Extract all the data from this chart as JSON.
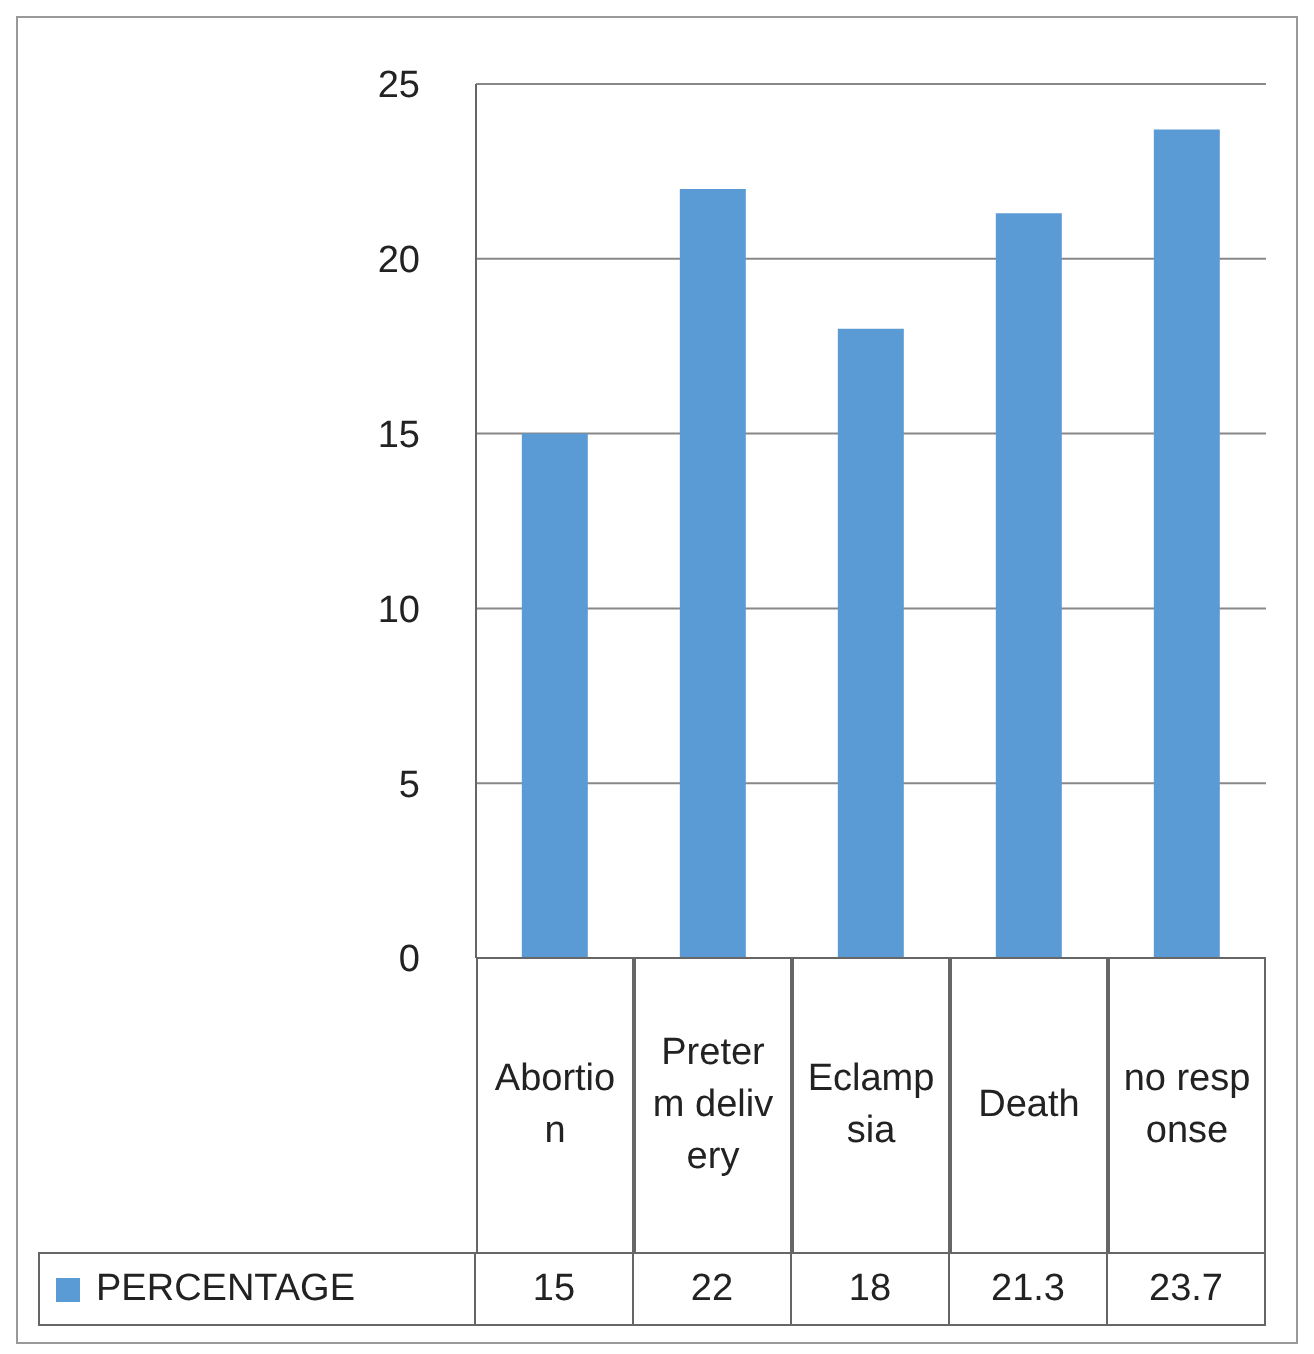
{
  "chart_data": {
    "type": "bar",
    "categories": [
      "Abortion",
      "Preterm delivery",
      "Eclampsia",
      "Death",
      "no response"
    ],
    "series": [
      {
        "name": "PERCENTAGE",
        "color": "#5b9bd5",
        "values": [
          15,
          22,
          18,
          21.3,
          23.7
        ]
      }
    ],
    "ylim": [
      0,
      25
    ],
    "yticks": [
      0,
      5,
      10,
      15,
      20,
      25
    ],
    "grid": "y",
    "legend": "bottom",
    "data_labels": true
  }
}
